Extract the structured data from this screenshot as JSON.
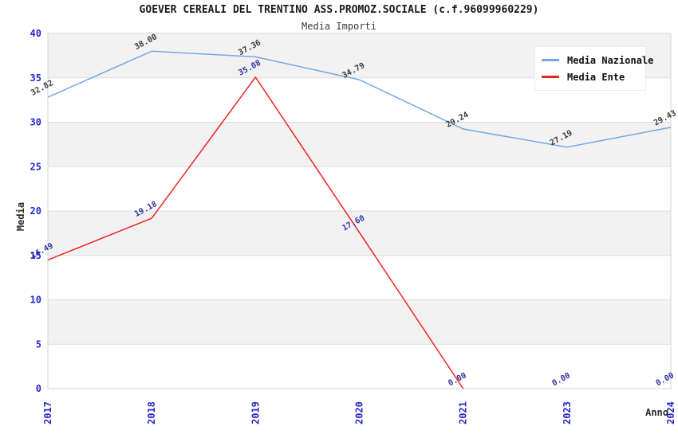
{
  "chart_data": {
    "type": "line",
    "title": "GOEVER CEREALI DEL TRENTINO ASS.PROMOZ.SOCIALE (c.f.96099960229)",
    "subtitle": "Media Importi",
    "xlabel": "Anno",
    "ylabel": "Media",
    "ylim": [
      0,
      40
    ],
    "ytick_step": 5,
    "ytick_labels": [
      "0",
      "5",
      "10",
      "15",
      "20",
      "25",
      "30",
      "35",
      "40"
    ],
    "categories": [
      "2017",
      "2018",
      "2019",
      "2020",
      "2021",
      "2023",
      "2024"
    ],
    "grid": "horizontal-bands",
    "legend_position": "top-right",
    "axis_tick_color": "#2828cd",
    "band_color": "#f2f2f2",
    "grid_color": "#dddddd",
    "border_color": "#d6d6d6",
    "series": [
      {
        "name": "Media Nazionale",
        "color": "#74a7e3",
        "label_color": "#3a3a3a",
        "values": [
          32.82,
          38.0,
          37.36,
          34.79,
          29.24,
          27.19,
          29.43
        ],
        "labels": [
          "32.82",
          "38.00",
          "37.36",
          "34.79",
          "29.24",
          "27.19",
          "29.43"
        ],
        "skip_zero_segments": false
      },
      {
        "name": "Media Ente",
        "color": "#ee2222",
        "label_color": "#32329e",
        "values": [
          14.49,
          19.18,
          35.08,
          17.6,
          0,
          0,
          0
        ],
        "labels": [
          "14.49",
          "19.18",
          "35.08",
          "17.60",
          "0.00",
          "0.00",
          "0.00"
        ],
        "skip_zero_segments": true
      }
    ]
  }
}
